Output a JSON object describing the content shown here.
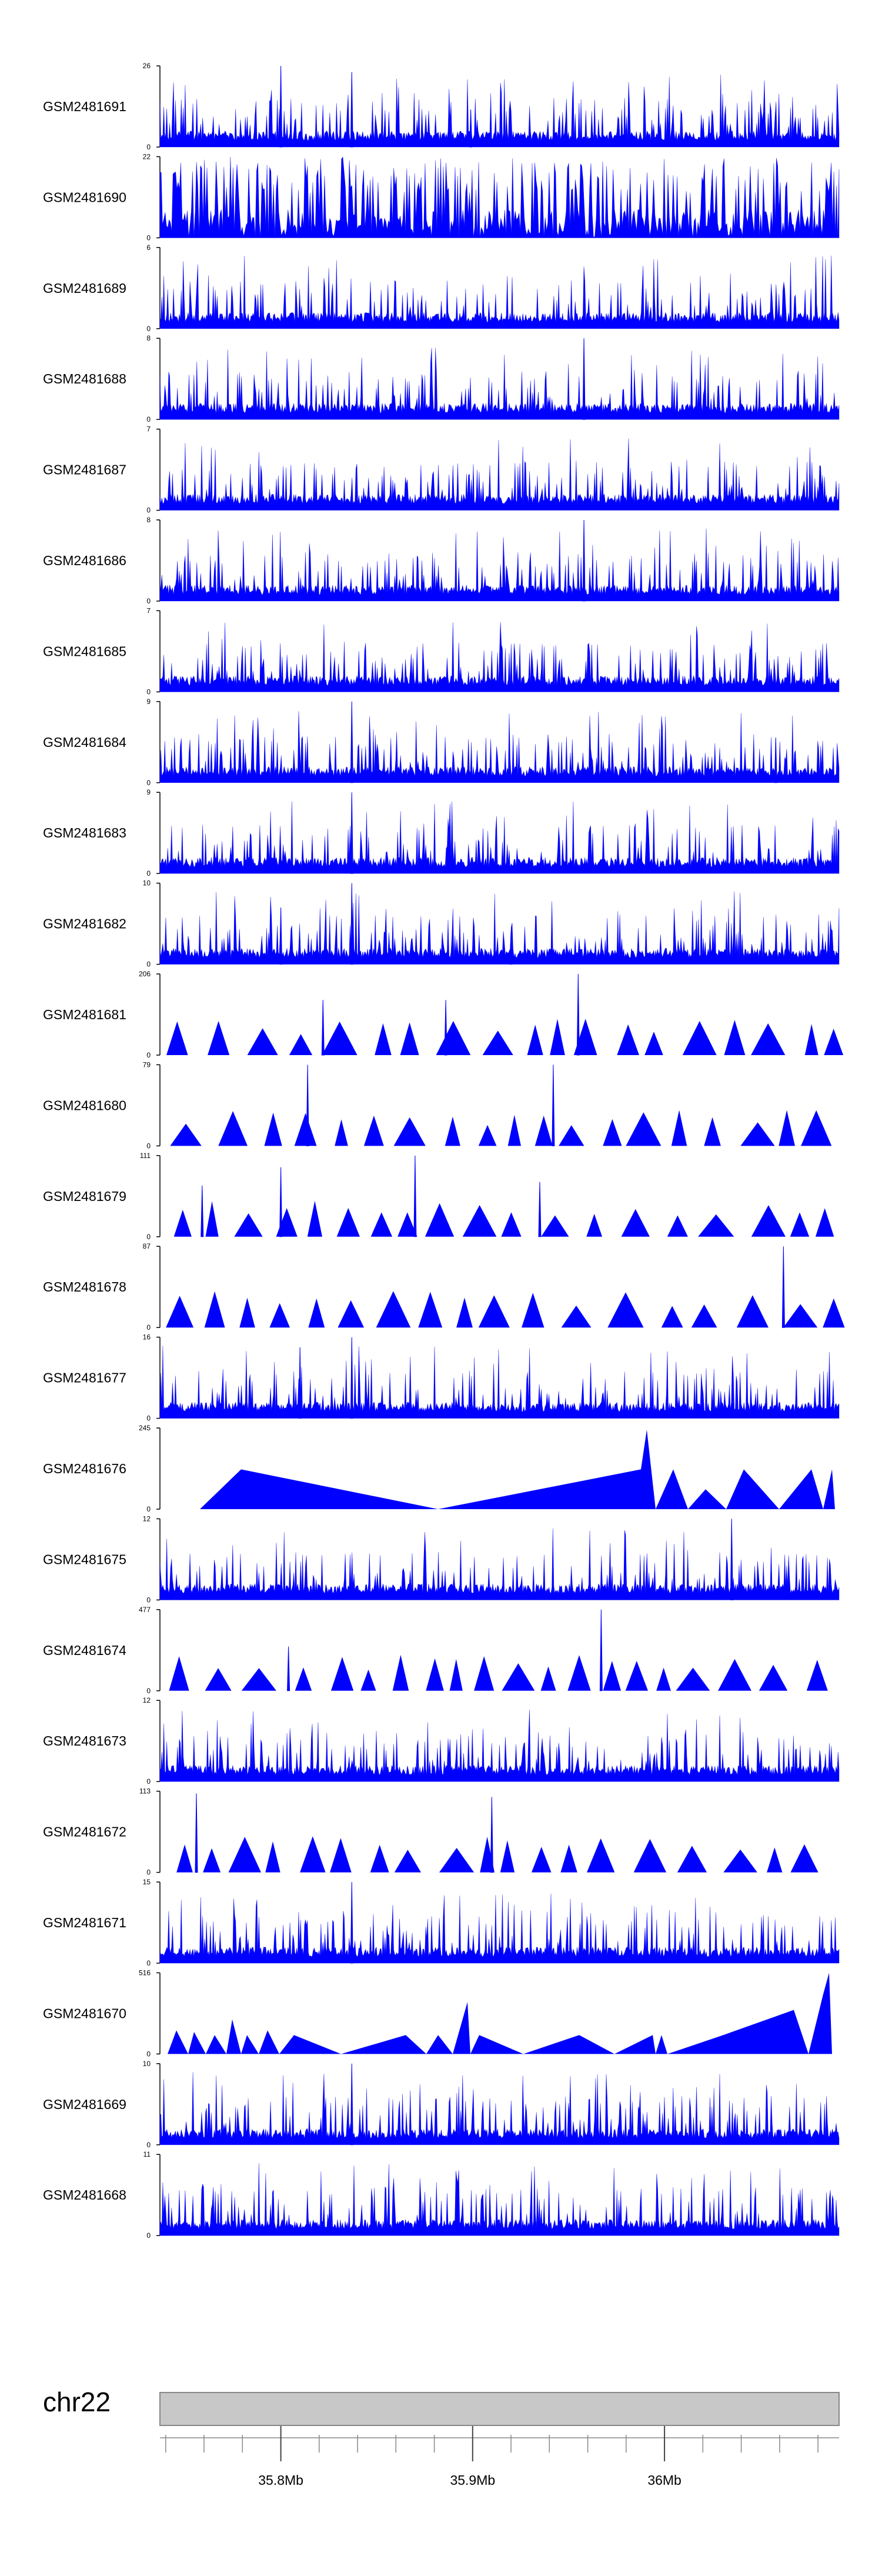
{
  "chart_data": {
    "type": "area",
    "title": "",
    "colors": {
      "signal": "#0000ff",
      "axis": "#000000",
      "ideogram_fill": "#c8c8c8",
      "ideogram_stroke": "#888888"
    },
    "x_range_mb": [
      35.737,
      36.091
    ],
    "tracks": [
      {
        "name": "GSM2481691",
        "ylim": [
          0,
          26
        ],
        "style": "bars",
        "seed": 11,
        "max": 26,
        "peaks": [
          [
            35.8,
            26
          ],
          [
            35.837,
            24
          ],
          [
            35.899,
            12
          ]
        ]
      },
      {
        "name": "GSM2481690",
        "ylim": [
          0,
          22
        ],
        "style": "dense",
        "seed": 12,
        "max": 22,
        "peaks": []
      },
      {
        "name": "GSM2481689",
        "ylim": [
          0,
          6
        ],
        "style": "bars",
        "seed": 13,
        "max": 6,
        "peaks": []
      },
      {
        "name": "GSM2481688",
        "ylim": [
          0,
          8
        ],
        "style": "bars",
        "seed": 14,
        "max": 8,
        "peaks": [
          [
            35.958,
            8
          ]
        ]
      },
      {
        "name": "GSM2481687",
        "ylim": [
          0,
          7
        ],
        "style": "bars",
        "seed": 15,
        "max": 7,
        "peaks": []
      },
      {
        "name": "GSM2481686",
        "ylim": [
          0,
          8
        ],
        "style": "bars",
        "seed": 16,
        "max": 8,
        "peaks": [
          [
            35.958,
            8
          ]
        ]
      },
      {
        "name": "GSM2481685",
        "ylim": [
          0,
          7
        ],
        "style": "bars",
        "seed": 17,
        "max": 7,
        "peaks": []
      },
      {
        "name": "GSM2481684",
        "ylim": [
          0,
          9
        ],
        "style": "bars",
        "seed": 18,
        "max": 9,
        "peaks": [
          [
            35.837,
            9
          ],
          [
            36.058,
            5
          ]
        ]
      },
      {
        "name": "GSM2481683",
        "ylim": [
          0,
          9
        ],
        "style": "bars",
        "seed": 19,
        "max": 9,
        "peaks": [
          [
            35.837,
            9
          ]
        ]
      },
      {
        "name": "GSM2481682",
        "ylim": [
          0,
          10
        ],
        "style": "bars",
        "seed": 20,
        "max": 10,
        "peaks": [
          [
            35.8,
            7
          ],
          [
            35.837,
            10
          ],
          [
            35.92,
            4
          ]
        ]
      },
      {
        "name": "GSM2481681",
        "ylim": [
          0,
          206
        ],
        "style": "tri",
        "seed": 21,
        "max": 206,
        "peaks": [
          [
            35.822,
            140
          ],
          [
            35.886,
            140
          ],
          [
            35.955,
            206
          ]
        ]
      },
      {
        "name": "GSM2481680",
        "ylim": [
          0,
          79
        ],
        "style": "tri",
        "seed": 22,
        "max": 79,
        "peaks": [
          [
            35.814,
            79
          ],
          [
            35.942,
            79
          ]
        ]
      },
      {
        "name": "GSM2481679",
        "ylim": [
          0,
          111
        ],
        "style": "tri",
        "seed": 23,
        "max": 111,
        "peaks": [
          [
            35.759,
            70
          ],
          [
            35.8,
            95
          ],
          [
            35.87,
            111
          ],
          [
            35.935,
            75
          ]
        ]
      },
      {
        "name": "GSM2481678",
        "ylim": [
          0,
          87
        ],
        "style": "tri",
        "seed": 24,
        "max": 87,
        "peaks": [
          [
            36.062,
            87
          ]
        ]
      },
      {
        "name": "GSM2481677",
        "ylim": [
          0,
          16
        ],
        "style": "bars",
        "seed": 25,
        "max": 16,
        "peaks": [
          [
            35.81,
            14
          ],
          [
            35.837,
            16
          ]
        ]
      },
      {
        "name": "GSM2481676",
        "ylim": [
          0,
          245
        ],
        "style": "sparse",
        "seed": 26,
        "max": 245,
        "peaks": []
      },
      {
        "name": "GSM2481675",
        "ylim": [
          0,
          12
        ],
        "style": "bars",
        "seed": 27,
        "max": 12,
        "peaks": [
          [
            36.035,
            12
          ]
        ]
      },
      {
        "name": "GSM2481674",
        "ylim": [
          0,
          477
        ],
        "style": "tri",
        "seed": 28,
        "max": 477,
        "peaks": [
          [
            35.804,
            260
          ],
          [
            35.967,
            477
          ]
        ]
      },
      {
        "name": "GSM2481673",
        "ylim": [
          0,
          12
        ],
        "style": "bars",
        "seed": 29,
        "max": 12,
        "peaks": []
      },
      {
        "name": "GSM2481672",
        "ylim": [
          0,
          113
        ],
        "style": "tri",
        "seed": 30,
        "max": 113,
        "peaks": [
          [
            35.756,
            110
          ],
          [
            35.91,
            105
          ]
        ]
      },
      {
        "name": "GSM2481671",
        "ylim": [
          0,
          15
        ],
        "style": "bars",
        "seed": 31,
        "max": 15,
        "peaks": [
          [
            35.837,
            15
          ]
        ]
      },
      {
        "name": "GSM2481670",
        "ylim": [
          0,
          516
        ],
        "style": "sparse2",
        "seed": 32,
        "max": 516,
        "peaks": []
      },
      {
        "name": "GSM2481669",
        "ylim": [
          0,
          10
        ],
        "style": "bars",
        "seed": 33,
        "max": 10,
        "peaks": [
          [
            35.837,
            10
          ]
        ]
      },
      {
        "name": "GSM2481668",
        "ylim": [
          0,
          11
        ],
        "style": "bars",
        "seed": 34,
        "max": 11,
        "peaks": []
      }
    ],
    "chromosome": "chr22",
    "x_ticks": [
      {
        "value": 35.8,
        "label": "35.8Mb"
      },
      {
        "value": 35.9,
        "label": "35.9Mb"
      },
      {
        "value": 36.0,
        "label": "36Mb"
      }
    ],
    "minor_tick_step_mb": 0.02
  }
}
